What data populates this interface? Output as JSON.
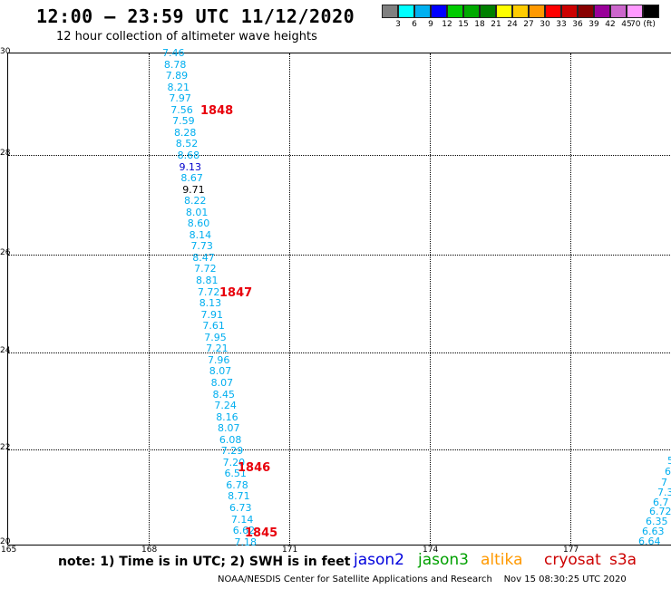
{
  "header": {
    "title": "12:00 – 23:59 UTC 11/12/2020",
    "subtitle": "12 hour collection of altimeter wave heights"
  },
  "scale": {
    "colors": [
      "#808080",
      "#00ffff",
      "#00b0f0",
      "#0000ff",
      "#00cc00",
      "#00aa00",
      "#008000",
      "#ffff00",
      "#ffcc00",
      "#ff9900",
      "#ff0000",
      "#cc0000",
      "#880000",
      "#990099",
      "#cc66cc",
      "#ff99ff",
      "#000000"
    ],
    "labels": [
      "3",
      "6",
      "9",
      "12",
      "15",
      "18",
      "21",
      "24",
      "27",
      "30",
      "33",
      "36",
      "39",
      "42",
      "45",
      "70 (ft)"
    ]
  },
  "axes": {
    "y_ticks": [
      "30",
      "28",
      "26",
      "24",
      "22",
      "20"
    ],
    "x_ticks": [
      "165",
      "168",
      "171",
      "174",
      "177"
    ]
  },
  "track_values": [
    "7.46",
    "8.78",
    "7.89",
    "8.21",
    "7.97",
    "7.56",
    "7.59",
    "8.28",
    "8.52",
    "8.68",
    "9.13",
    "8.67",
    "9.71",
    "8.22",
    "8.01",
    "8.60",
    "8.14",
    "7.73",
    "8.47",
    "7.72",
    "8.81",
    "7.72",
    "8.13",
    "7.91",
    "7.61",
    "7.95",
    "7.21",
    "7.96",
    "8.07",
    "8.07",
    "8.45",
    "7.24",
    "8.16",
    "8.07",
    "6.08",
    "7.29",
    "7.20",
    "6.51",
    "6.78",
    "8.71",
    "6.73",
    "7.14",
    "6.62",
    "7.18"
  ],
  "pass_labels": [
    "1848",
    "1847",
    "1846",
    "1845"
  ],
  "right_track": [
    "5",
    "6",
    "7",
    "7.3",
    "6.7",
    "6.72",
    "6.35",
    "6.63",
    "6.64"
  ],
  "footer": {
    "note": "note:  1) Time is in UTC;  2) SWH is in feet",
    "sat_jason2": "jason2",
    "sat_jason3": "jason3",
    "sat_altika": "altika",
    "sat_cryosat": "cryosat",
    "sat_s3a": "s3a",
    "credit": "NOAA/NESDIS Center for Satellite Applications and Research",
    "timestamp": "Nov 15 08:30:25 UTC 2020"
  }
}
